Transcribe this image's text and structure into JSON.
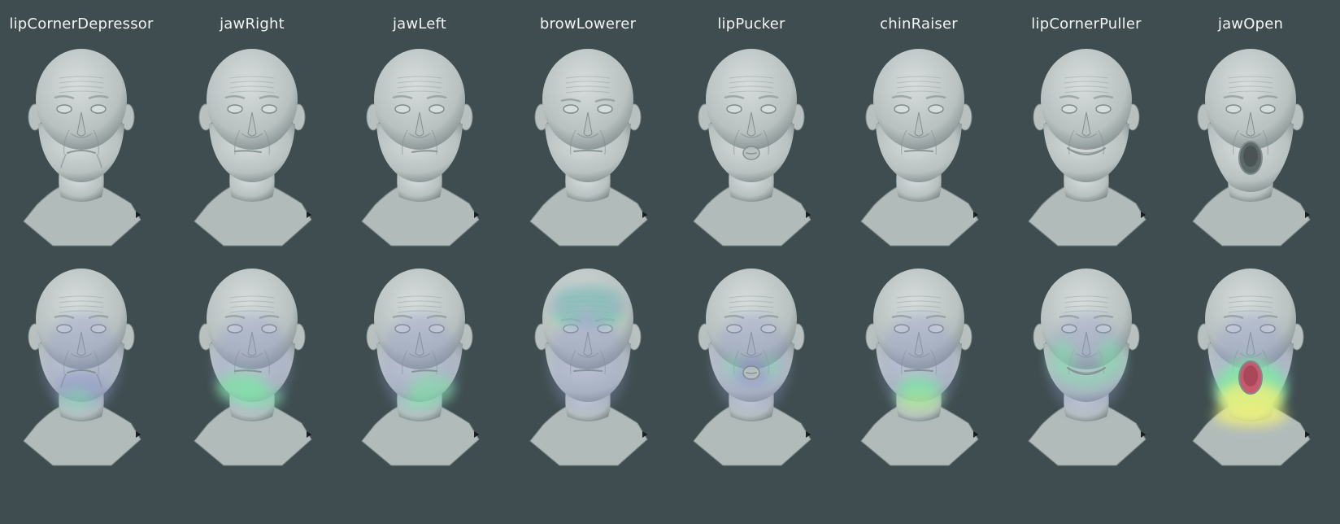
{
  "figure": {
    "columns": [
      {
        "id": "lipCornerDepressor",
        "label": "lipCornerDepressor",
        "mouth": "down",
        "heat": "chin-low",
        "heat_intensity": 0.45
      },
      {
        "id": "jawRight",
        "label": "jawRight",
        "mouth": "shift-right",
        "heat": "jaw-right",
        "heat_intensity": 0.6
      },
      {
        "id": "jawLeft",
        "label": "jawLeft",
        "mouth": "shift-left",
        "heat": "jaw-left",
        "heat_intensity": 0.55
      },
      {
        "id": "browLowerer",
        "label": "browLowerer",
        "mouth": "neutral",
        "heat": "brow",
        "heat_intensity": 0.75
      },
      {
        "id": "lipPucker",
        "label": "lipPucker",
        "mouth": "pucker",
        "heat": "lips",
        "heat_intensity": 0.4
      },
      {
        "id": "chinRaiser",
        "label": "chinRaiser",
        "mouth": "neutral",
        "heat": "chin",
        "heat_intensity": 0.7
      },
      {
        "id": "lipCornerPuller",
        "label": "lipCornerPuller",
        "mouth": "smile",
        "heat": "cheeks",
        "heat_intensity": 0.5
      },
      {
        "id": "jawOpen",
        "label": "jawOpen",
        "mouth": "open",
        "heat": "jaw-open",
        "heat_intensity": 1.0
      }
    ],
    "rows": [
      {
        "id": "shaded",
        "kind": "neutral-render"
      },
      {
        "id": "heatmap",
        "kind": "activation-overlay"
      }
    ],
    "colors": {
      "background": "#3f4d50",
      "label_text": "#f2f4f4",
      "skin_light": "#d7dddc",
      "skin_mid": "#b8c1c0",
      "skin_dark": "#7f8b8b",
      "heat_low": "#8c96c8",
      "heat_mid": "#7ee6a6",
      "heat_high": "#f2f27a",
      "mouth_inner": "#c85a6e"
    }
  }
}
